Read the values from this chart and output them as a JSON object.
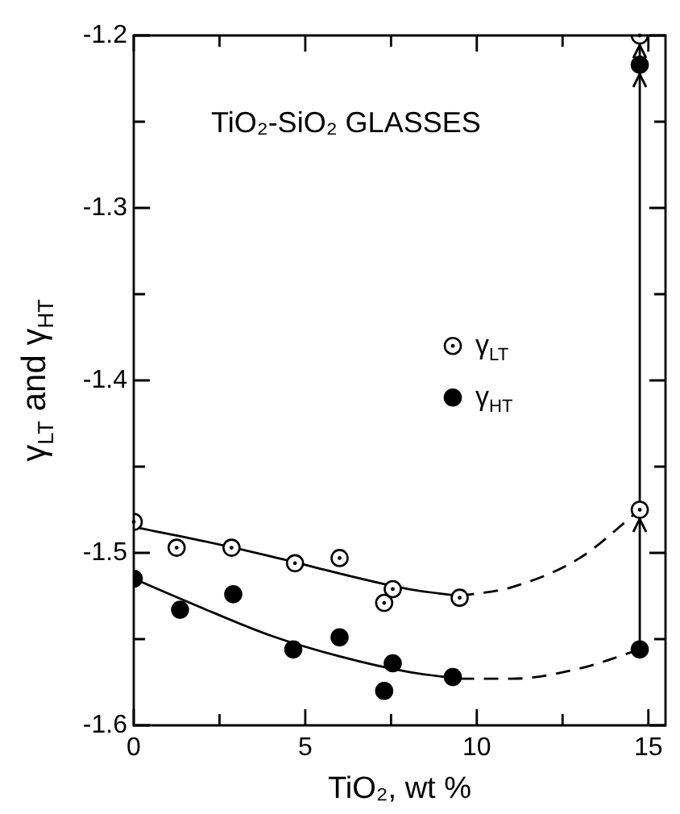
{
  "chart_data": {
    "type": "scatter",
    "title": "TiO₂-SiO₂ GLASSES",
    "xlabel": "TiO₂, wt %",
    "ylabel": "γ$_{LT}$ and γ$_{HT}$",
    "xlim": [
      0,
      15.5
    ],
    "xticks": [
      0,
      {
        "value": 2.5,
        "label": null
      },
      5,
      {
        "value": 7.5,
        "label": null
      },
      10,
      {
        "value": 12.5,
        "label": null
      },
      15
    ],
    "ylim": [
      -1.6,
      -1.2
    ],
    "yticks": [
      -1.6,
      {
        "value": -1.55,
        "label": null
      },
      -1.5,
      {
        "value": -1.45,
        "label": null
      },
      -1.4,
      {
        "value": -1.35,
        "label": null
      },
      -1.3,
      {
        "value": -1.25,
        "label": null
      },
      -1.2
    ],
    "grid": false,
    "legend": "right",
    "marker": "circle",
    "series": [
      {
        "name": "γ$_{LT}$",
        "color": "#000000",
        "x": [
          0,
          1.25,
          2.85,
          4.7,
          6.0,
          7.3,
          7.55,
          9.5,
          14.75,
          14.75
        ],
        "values": [
          -1.482,
          -1.497,
          -1.497,
          -1.506,
          -1.503,
          -1.529,
          -1.521,
          -1.526,
          -1.475,
          -1.2
        ]
      },
      {
        "name": "γ$_{HT}$",
        "color": "#000000",
        "x": [
          0,
          1.35,
          2.9,
          4.65,
          6.0,
          7.3,
          7.55,
          9.3,
          14.75,
          14.75
        ],
        "values": [
          -1.515,
          -1.533,
          -1.524,
          -1.556,
          -1.549,
          -1.58,
          -1.564,
          -1.572,
          -1.556,
          -1.217
        ]
      },
      {
        "type": "line",
        "color": "#000000",
        "marker": "none",
        "line_style": "solid",
        "x": [
          0,
          2,
          4,
          6,
          8,
          9.5
        ],
        "values": [
          -1.485,
          -1.493,
          -1.502,
          -1.512,
          -1.521,
          -1.525
        ]
      },
      {
        "type": "line",
        "color": "#000000",
        "marker": "none",
        "line_style": "dashed",
        "x": [
          9.5,
          11,
          13,
          14.75
        ],
        "values": [
          -1.525,
          -1.52,
          -1.503,
          -1.475
        ]
      },
      {
        "type": "line",
        "color": "#000000",
        "marker": "none",
        "line_style": "solid",
        "x": [
          0,
          2,
          4,
          6,
          8,
          9.5
        ],
        "values": [
          -1.515,
          -1.532,
          -1.548,
          -1.56,
          -1.569,
          -1.573
        ]
      },
      {
        "type": "line",
        "color": "#000000",
        "marker": "none",
        "line_style": "dashed",
        "x": [
          9.5,
          11,
          13,
          14.75
        ],
        "values": [
          -1.573,
          -1.573,
          -1.567,
          -1.556
        ]
      },
      {
        "type": "line",
        "color": "#000000",
        "marker": "none",
        "line_style": "solid",
        "x": [
          14.75,
          14.75,
          14.75,
          14.75
        ],
        "values": [
          -1.556,
          -1.475,
          -1.217,
          -1.2
        ]
      }
    ]
  }
}
